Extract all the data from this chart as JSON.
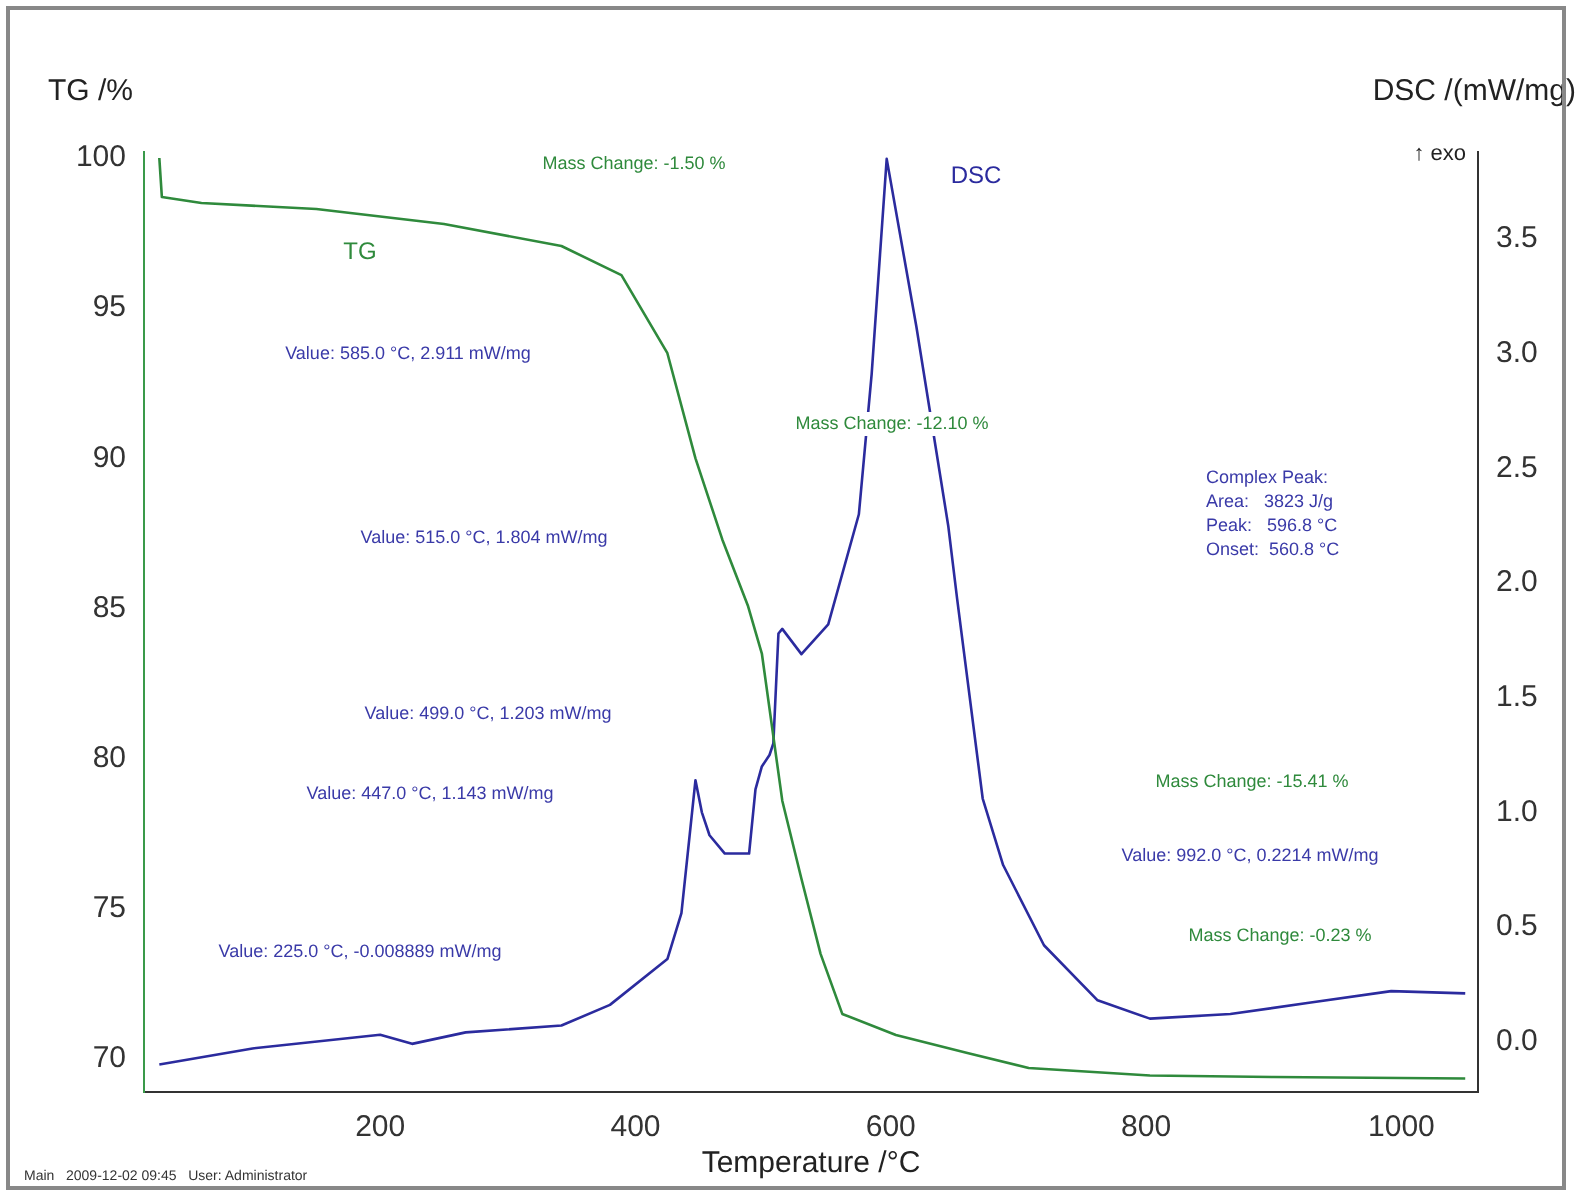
{
  "chart_data": {
    "type": "line",
    "xlabel": "Temperature /°C",
    "ylabel": "TG /%",
    "y2label": "DSC /(mW/mg)",
    "xlim": [
      15,
      1060
    ],
    "xticks": [
      200,
      400,
      600,
      800,
      1000
    ],
    "ylim": [
      68.9,
      100.2
    ],
    "yticks": [
      70,
      75,
      80,
      85,
      90,
      95,
      100
    ],
    "y2lim": [
      -0.22,
      3.88
    ],
    "y2ticks": [
      {
        "value": 0,
        "label": "0.0"
      },
      {
        "value": 0.5,
        "label": "0.5"
      },
      {
        "value": 1,
        "label": "1.0"
      },
      {
        "value": 1.5,
        "label": "1.5"
      },
      {
        "value": 2,
        "label": "2.0"
      },
      {
        "value": 2.5,
        "label": "2.5"
      },
      {
        "value": 3,
        "label": "3.0"
      },
      {
        "value": 3.5,
        "label": "3.5"
      }
    ],
    "grid": false,
    "legend": false,
    "marker": "none",
    "line_style": "solid",
    "series": [
      {
        "name": "TG",
        "color": "#2f8a3c",
        "x": [
          27,
          29,
          60,
          150,
          250,
          342,
          389,
          425,
          447,
          468,
          488,
          499,
          515,
          530,
          545,
          562,
          604,
          660,
          708,
          803,
          900,
          1050
        ],
        "values": [
          100,
          98.7,
          98.5,
          98.3,
          97.8,
          97.07,
          96.1,
          93.5,
          90,
          87.3,
          85.1,
          83.5,
          78.6,
          76,
          73.5,
          71.5,
          70.8,
          70.2,
          69.7,
          69.45,
          69.4,
          69.35
        ]
      },
      {
        "name": "DSC",
        "color": "#2b2b9e",
        "axis": "y2",
        "x": [
          27,
          100,
          200,
          225,
          267,
          342,
          380,
          425,
          436,
          447,
          452,
          458,
          470,
          489,
          494,
          499,
          505,
          508,
          512,
          515,
          530,
          551,
          575,
          585,
          596.8,
          620,
          645,
          652,
          672,
          688,
          720,
          762,
          803,
          866,
          929,
          992,
          1050
        ],
        "values": [
          -0.1,
          -0.03,
          0.03,
          -0.01,
          0.04,
          0.07,
          0.16,
          0.36,
          0.56,
          1.14,
          1.0,
          0.9,
          0.82,
          0.82,
          1.1,
          1.2,
          1.25,
          1.3,
          1.78,
          1.8,
          1.69,
          1.82,
          2.3,
          2.91,
          3.85,
          3.12,
          2.25,
          1.93,
          1.06,
          0.77,
          0.42,
          0.18,
          0.1,
          0.12,
          0.17,
          0.22,
          0.21
        ]
      }
    ],
    "annotations": [
      "Mass Change: -1.50 %",
      "Value: 585.0 °C, 2.911 mW/mg",
      "Mass Change: -12.10 %",
      "Complex Peak:\nArea:   3823 J/g\nPeak:   596.8 °C\nOnset:  560.8 °C",
      "Value: 515.0 °C, 1.804 mW/mg",
      "Value: 499.0 °C, 1.203 mW/mg",
      "Value: 447.0 °C, 1.143 mW/mg",
      "Mass Change: -15.41 %",
      "Value: 992.0 °C, 0.2214 mW/mg",
      "Mass Change: -0.23 %",
      "Value: 225.0 °C, -0.008889 mW/mg",
      "↑ exo",
      "Main   2009-12-02 09:45   User: Administrator"
    ]
  }
}
